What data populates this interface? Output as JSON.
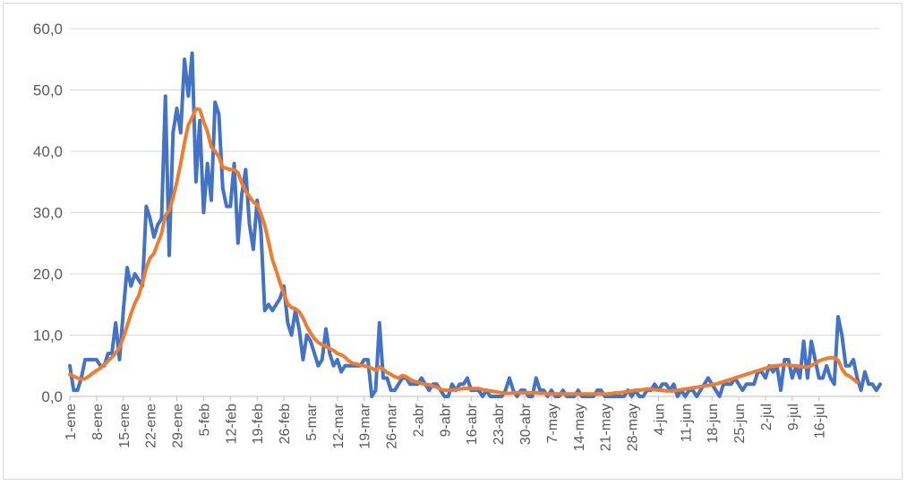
{
  "chart_data": {
    "type": "line",
    "title": "",
    "xlabel": "",
    "ylabel": "",
    "ylim": [
      0,
      60
    ],
    "yticks": [
      "0,0",
      "10,0",
      "20,0",
      "30,0",
      "40,0",
      "50,0",
      "60,0"
    ],
    "ytick_values": [
      0,
      10,
      20,
      30,
      40,
      50,
      60
    ],
    "grid": "horizontal",
    "legend": "none",
    "x_tick_labels": [
      "1-ene",
      "8-ene",
      "15-ene",
      "22-ene",
      "29-ene",
      "5-feb",
      "12-feb",
      "19-feb",
      "26-feb",
      "5-mar",
      "12-mar",
      "19-mar",
      "26-mar",
      "2-abr",
      "9-abr",
      "16-abr",
      "23-abr",
      "30-abr",
      "7-may",
      "14-may",
      "21-may",
      "28-may",
      "4-jun",
      "11-jun",
      "18-jun",
      "25-jun",
      "2-jul",
      "9-jul",
      "16-jul"
    ],
    "x_tick_day_index": [
      0,
      7,
      14,
      21,
      28,
      35,
      42,
      49,
      56,
      63,
      70,
      77,
      84,
      91,
      98,
      105,
      112,
      119,
      126,
      133,
      140,
      147,
      154,
      161,
      168,
      175,
      182,
      189,
      196
    ],
    "series": [
      {
        "color": "#4472c4",
        "values": [
          5,
          1,
          1,
          3,
          6,
          6,
          6,
          6,
          5,
          5,
          7,
          7,
          12,
          6,
          14,
          21,
          18,
          20,
          19,
          18,
          31,
          29,
          26,
          28,
          29,
          49,
          23,
          43,
          47,
          43,
          55,
          49,
          56,
          35,
          45,
          30,
          38,
          32,
          48,
          46,
          34,
          31,
          31,
          38,
          25,
          33,
          37,
          28,
          24,
          32,
          27,
          14,
          15,
          14,
          15,
          16,
          18,
          12,
          10,
          14,
          11,
          6,
          10,
          9,
          7,
          5,
          6,
          11,
          7,
          5,
          6,
          4,
          5,
          5,
          5,
          5,
          5,
          6,
          6,
          0,
          1,
          12,
          3,
          3,
          1,
          1,
          2,
          3,
          3,
          2,
          2,
          2,
          3,
          2,
          1,
          2,
          2,
          1,
          0,
          0,
          2,
          1,
          2,
          2,
          3,
          1,
          1,
          1,
          0,
          1,
          0,
          0,
          0,
          0,
          1,
          3,
          1,
          0,
          1,
          1,
          0,
          0,
          3,
          1,
          1,
          0,
          1,
          0,
          0,
          1,
          0,
          0,
          0,
          1,
          0,
          0,
          0,
          0,
          1,
          1,
          0,
          0,
          0,
          0,
          0,
          0,
          1,
          0,
          1,
          0,
          0,
          1,
          1,
          2,
          1,
          2,
          2,
          1,
          2,
          0,
          1,
          0,
          1,
          1,
          0,
          1,
          2,
          3,
          2,
          1,
          0,
          2,
          2,
          2,
          3,
          2,
          1,
          2,
          2,
          2,
          4,
          4,
          3,
          5,
          4,
          5,
          1,
          6,
          6,
          3,
          5,
          3,
          9,
          3,
          9,
          6,
          3,
          3,
          5,
          3,
          2,
          13,
          10,
          5,
          5,
          6,
          3,
          1,
          4,
          2,
          2,
          1,
          2
        ]
      },
      {
        "color": "#ed7d31",
        "values": [
          3.6,
          3.3,
          3,
          2.8,
          2.9,
          3.3,
          3.8,
          4.2,
          4.6,
          5.2,
          5.8,
          6.4,
          7.1,
          8,
          9.6,
          11.5,
          13.5,
          15.2,
          16.4,
          18.5,
          21,
          22.6,
          23.3,
          25,
          26.6,
          29.5,
          30.4,
          32.4,
          35,
          38,
          41.4,
          44.3,
          45.5,
          46.9,
          46.8,
          44.8,
          43.2,
          40.7,
          40,
          39.1,
          37.4,
          37.2,
          37,
          37,
          36.5,
          34.8,
          33.5,
          32.6,
          31.7,
          31.3,
          29.8,
          27.9,
          25.2,
          22.3,
          20.5,
          18.5,
          16.8,
          15.1,
          14.5,
          14.3,
          13.8,
          12.8,
          11.4,
          10.3,
          9.4,
          8.8,
          8.4,
          8.2,
          7.8,
          7.5,
          7,
          6.8,
          6.4,
          5.8,
          5.4,
          5.3,
          5.1,
          5,
          4.8,
          4.6,
          4.2,
          4.8,
          4.4,
          3.9,
          3.6,
          3.2,
          3,
          3.4,
          3.2,
          2.8,
          2.5,
          2.3,
          2.1,
          2,
          1.9,
          1.7,
          1.5,
          1.2,
          1,
          1,
          1,
          1.1,
          1.2,
          1.3,
          1.3,
          1.3,
          1.3,
          1.3,
          1.1,
          1,
          0.9,
          0.8,
          0.7,
          0.6,
          0.5,
          0.5,
          0.6,
          0.6,
          0.6,
          0.6,
          0.6,
          0.6,
          0.6,
          0.5,
          0.5,
          0.4,
          0.4,
          0.4,
          0.4,
          0.4,
          0.4,
          0.4,
          0.4,
          0.4,
          0.4,
          0.4,
          0.4,
          0.4,
          0.4,
          0.4,
          0.4,
          0.4,
          0.5,
          0.6,
          0.6,
          0.7,
          0.8,
          0.9,
          1,
          1,
          1.1,
          1.2,
          1.2,
          1.1,
          1,
          1,
          0.9,
          0.9,
          0.9,
          1,
          1.1,
          1.2,
          1.3,
          1.4,
          1.5,
          1.6,
          1.7,
          1.8,
          1.9,
          2,
          2.2,
          2.4,
          2.6,
          2.8,
          3,
          3.2,
          3.4,
          3.6,
          3.8,
          4,
          4.2,
          4.4,
          4.6,
          4.8,
          5,
          5,
          5.1,
          5.2,
          5.2,
          5,
          5,
          4.9,
          4.8,
          4.8,
          5,
          5.4,
          5.8,
          6,
          6.2,
          6.3,
          6.3,
          5.9,
          4.5,
          3.6,
          3.3,
          2.8,
          2.3
        ]
      }
    ]
  }
}
